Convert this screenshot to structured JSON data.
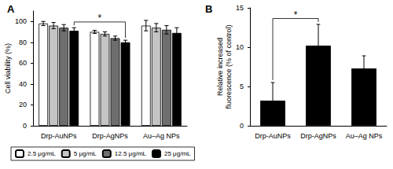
{
  "chart_data": [
    {
      "type": "bar",
      "title": "A",
      "categories": [
        "Drp-AuNPs",
        "Drp-AgNPs",
        "Au–Ag NPs"
      ],
      "series": [
        {
          "name": "2.5 μg/mL",
          "color": "#ffffff",
          "values": [
            98,
            90,
            96
          ],
          "errors": [
            2,
            1.5,
            5
          ]
        },
        {
          "name": "5 μg/mL",
          "color": "#c4c4c4",
          "values": [
            96,
            88,
            94
          ],
          "errors": [
            3,
            2,
            4
          ]
        },
        {
          "name": "12.5 μg/mL",
          "color": "#6e6e6e",
          "values": [
            94,
            84,
            92
          ],
          "errors": [
            3,
            2,
            4
          ]
        },
        {
          "name": "25 μg/mL",
          "color": "#000000",
          "values": [
            91,
            80,
            89
          ],
          "errors": [
            3,
            2,
            5
          ]
        }
      ],
      "ylabel": "Cell viability (%)",
      "ylim": [
        0,
        110
      ],
      "yticks": [
        0,
        20,
        40,
        60,
        80,
        100
      ],
      "grid": false,
      "legend": "bottom",
      "annotations": [
        {
          "text": "*",
          "from": "Drp-AuNPs",
          "to": "Drp-AgNPs",
          "series": "25 μg/mL"
        }
      ]
    },
    {
      "type": "bar",
      "title": "B",
      "categories": [
        "Drp-AuNPs",
        "Drp-AgNPs",
        "Au–Ag NPs"
      ],
      "values": [
        3.2,
        10.2,
        7.3
      ],
      "errors": [
        2.3,
        2.7,
        1.6
      ],
      "color": "#000000",
      "ylabel": "Relative increased\nfluorescence (% of control)",
      "ylim": [
        0,
        15
      ],
      "yticks": [
        0,
        5,
        10,
        15
      ],
      "grid": false,
      "annotations": [
        {
          "text": "*",
          "from": "Drp-AuNPs",
          "to": "Drp-AgNPs"
        }
      ]
    }
  ]
}
